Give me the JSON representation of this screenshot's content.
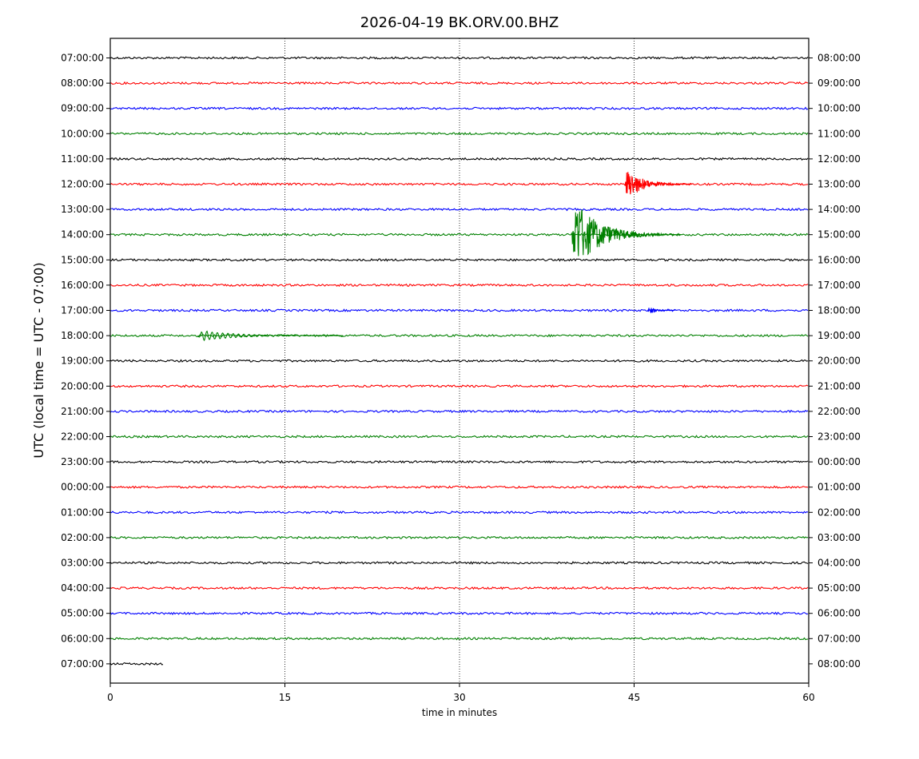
{
  "chart_data": {
    "type": "line",
    "title": "2026-04-19 BK.ORV.00.BHZ",
    "xlabel": "time in minutes",
    "ylabel": "UTC (local time = UTC - 07:00)",
    "xlim": [
      0,
      60
    ],
    "xticks": [
      0,
      15,
      30,
      45,
      60
    ],
    "xgrid": [
      15,
      30,
      45
    ],
    "trace_colors": [
      "#000000",
      "#ff0000",
      "#0000ff",
      "#008000"
    ],
    "left_labels": [
      "07:00:00",
      "08:00:00",
      "09:00:00",
      "10:00:00",
      "11:00:00",
      "12:00:00",
      "13:00:00",
      "14:00:00",
      "15:00:00",
      "16:00:00",
      "17:00:00",
      "18:00:00",
      "19:00:00",
      "20:00:00",
      "21:00:00",
      "22:00:00",
      "23:00:00",
      "00:00:00",
      "01:00:00",
      "02:00:00",
      "03:00:00",
      "04:00:00",
      "05:00:00",
      "06:00:00",
      "07:00:00"
    ],
    "right_labels": [
      "08:00:00",
      "09:00:00",
      "10:00:00",
      "11:00:00",
      "12:00:00",
      "13:00:00",
      "14:00:00",
      "15:00:00",
      "16:00:00",
      "17:00:00",
      "18:00:00",
      "19:00:00",
      "20:00:00",
      "21:00:00",
      "22:00:00",
      "23:00:00",
      "00:00:00",
      "01:00:00",
      "02:00:00",
      "03:00:00",
      "04:00:00",
      "05:00:00",
      "06:00:00",
      "07:00:00",
      "08:00:00"
    ],
    "last_trace_end_minutes": 4.6,
    "events": [
      {
        "trace": 5,
        "start_min": 44.2,
        "end_min": 50.0,
        "amplitude": 0.75
      },
      {
        "trace": 7,
        "start_min": 39.6,
        "end_min": 49.0,
        "amplitude": 1.6
      },
      {
        "trace": 10,
        "start_min": 46.2,
        "end_min": 48.5,
        "amplitude": 0.2
      },
      {
        "trace": 11,
        "start_min": 7.5,
        "end_min": 20.0,
        "amplitude": 0.25
      }
    ]
  }
}
